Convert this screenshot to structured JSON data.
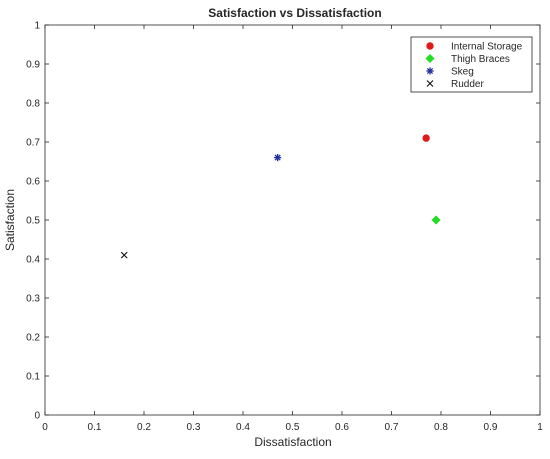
{
  "chart_data": {
    "type": "scatter",
    "title": "Satisfaction vs Dissatisfaction",
    "xlabel": "Dissatisfaction",
    "ylabel": "Satisfaction",
    "xlim": [
      0,
      1
    ],
    "ylim": [
      0,
      1
    ],
    "xticks": [
      "0",
      "0.1",
      "0.2",
      "0.3",
      "0.4",
      "0.5",
      "0.6",
      "0.7",
      "0.8",
      "0.9",
      "1"
    ],
    "yticks": [
      "0",
      "0.1",
      "0.2",
      "0.3",
      "0.4",
      "0.5",
      "0.6",
      "0.7",
      "0.8",
      "0.9",
      "1"
    ],
    "grid": false,
    "legend_position": "top-right",
    "series": [
      {
        "name": "Internal Storage",
        "x": 0.77,
        "y": 0.71,
        "marker": "circle",
        "color": "#e01a1a"
      },
      {
        "name": "Thigh Braces",
        "x": 0.79,
        "y": 0.5,
        "marker": "diamond",
        "color": "#22dd22"
      },
      {
        "name": "Skeg",
        "x": 0.47,
        "y": 0.66,
        "marker": "asterisk",
        "color": "#1f2d9e"
      },
      {
        "name": "Rudder",
        "x": 0.16,
        "y": 0.41,
        "marker": "cross",
        "color": "#111111"
      }
    ]
  }
}
